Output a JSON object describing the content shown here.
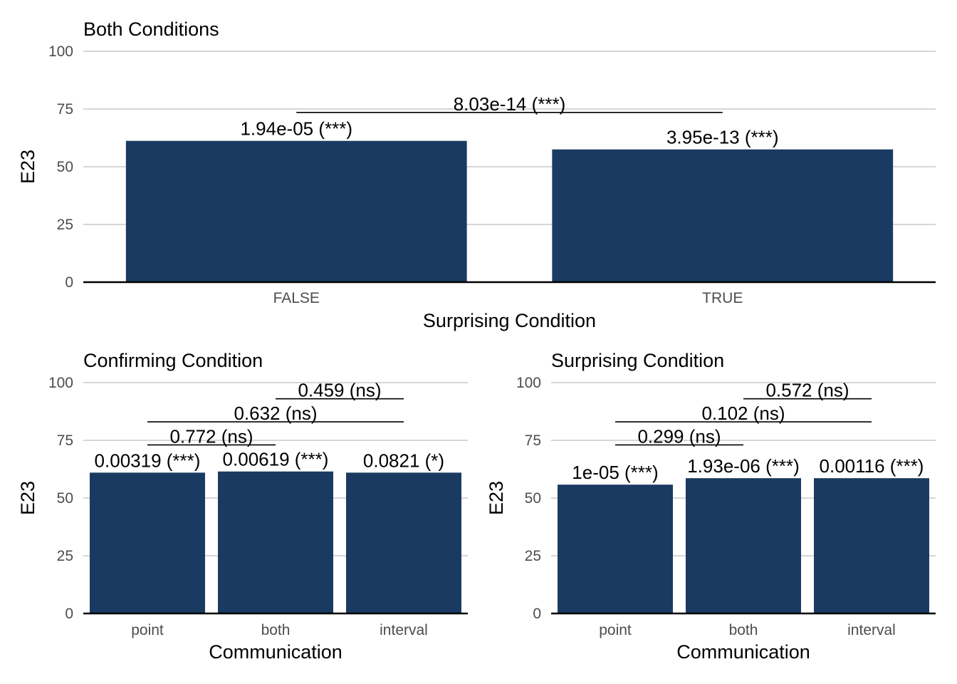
{
  "chart_data": [
    {
      "type": "bar",
      "title": "Both Conditions",
      "xlabel": "Surprising Condition",
      "ylabel": "E23",
      "ylim": [
        0,
        100
      ],
      "yticks": [
        0,
        25,
        50,
        75,
        100
      ],
      "categories": [
        "FALSE",
        "TRUE"
      ],
      "values": [
        61.2,
        57.5
      ],
      "bar_labels": [
        "1.94e-05 (***)",
        "3.95e-13 (***)"
      ],
      "brackets": [
        {
          "from": "FALSE",
          "to": "TRUE",
          "y": 73.5,
          "label": "8.03e-14 (***)"
        }
      ],
      "bar_color": "#1b3a62",
      "grid": true
    },
    {
      "type": "bar",
      "title": "Confirming Condition",
      "xlabel": "Communication",
      "ylabel": "E23",
      "ylim": [
        0,
        100
      ],
      "yticks": [
        0,
        25,
        50,
        75,
        100
      ],
      "categories": [
        "point",
        "both",
        "interval"
      ],
      "values": [
        61.0,
        61.5,
        61.0
      ],
      "bar_labels": [
        "0.00319 (***)",
        "0.00619 (***)",
        "0.0821 (*)"
      ],
      "brackets": [
        {
          "from": "point",
          "to": "both",
          "y": 73.0,
          "label": "0.772 (ns)"
        },
        {
          "from": "point",
          "to": "interval",
          "y": 83.0,
          "label": "0.632 (ns)"
        },
        {
          "from": "both",
          "to": "interval",
          "y": 93.0,
          "label": "0.459 (ns)"
        }
      ],
      "bar_color": "#1b3a62",
      "grid": true
    },
    {
      "type": "bar",
      "title": "Surprising Condition",
      "xlabel": "Communication",
      "ylabel": "E23",
      "ylim": [
        0,
        100
      ],
      "yticks": [
        0,
        25,
        50,
        75,
        100
      ],
      "categories": [
        "point",
        "both",
        "interval"
      ],
      "values": [
        55.8,
        58.6,
        58.6
      ],
      "bar_labels": [
        "1e-05 (***)",
        "1.93e-06 (***)",
        "0.00116 (***)"
      ],
      "brackets": [
        {
          "from": "point",
          "to": "both",
          "y": 73.0,
          "label": "0.299 (ns)"
        },
        {
          "from": "point",
          "to": "interval",
          "y": 83.0,
          "label": "0.102 (ns)"
        },
        {
          "from": "both",
          "to": "interval",
          "y": 93.0,
          "label": "0.572 (ns)"
        }
      ],
      "bar_color": "#1b3a62",
      "grid": true
    }
  ]
}
